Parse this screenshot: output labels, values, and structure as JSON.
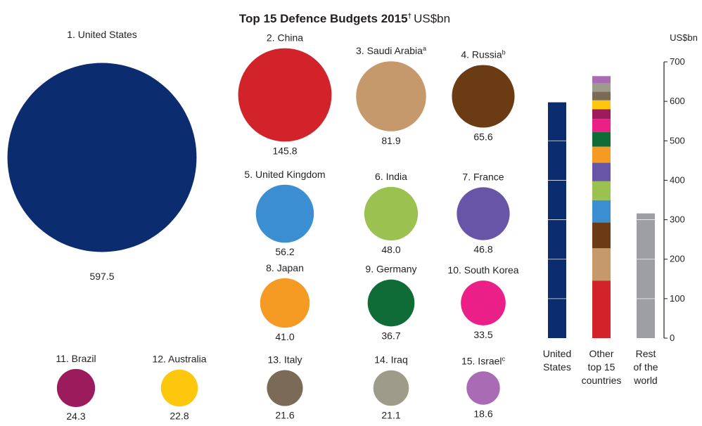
{
  "title": {
    "main": "Top 15 Defence Budgets 2015",
    "dagger": "†",
    "unit": "US$bn"
  },
  "chart_data": [
    {
      "type": "bubble",
      "unit": "US$bn",
      "countries": [
        {
          "rank": 1,
          "name": "United States",
          "note": "",
          "value": 597.5,
          "color": "#0b2d6f"
        },
        {
          "rank": 2,
          "name": "China",
          "note": "",
          "value": 145.8,
          "color": "#d2232a"
        },
        {
          "rank": 3,
          "name": "Saudi Arabia",
          "note": "a",
          "value": 81.9,
          "color": "#c5996b"
        },
        {
          "rank": 4,
          "name": "Russia",
          "note": "b",
          "value": 65.6,
          "color": "#6b3b14"
        },
        {
          "rank": 5,
          "name": "United Kingdom",
          "note": "",
          "value": 56.2,
          "color": "#3b8ed1"
        },
        {
          "rank": 6,
          "name": "India",
          "note": "",
          "value": 48.0,
          "color": "#9bc150"
        },
        {
          "rank": 7,
          "name": "France",
          "note": "",
          "value": 46.8,
          "color": "#6756a8"
        },
        {
          "rank": 8,
          "name": "Japan",
          "note": "",
          "value": 41.0,
          "color": "#f59a23"
        },
        {
          "rank": 9,
          "name": "Germany",
          "note": "",
          "value": 36.7,
          "color": "#0f6c37"
        },
        {
          "rank": 10,
          "name": "South Korea",
          "note": "",
          "value": 33.5,
          "color": "#ea2088"
        },
        {
          "rank": 11,
          "name": "Brazil",
          "note": "",
          "value": 24.3,
          "color": "#9c1b5c"
        },
        {
          "rank": 12,
          "name": "Australia",
          "note": "",
          "value": 22.8,
          "color": "#fdc70e"
        },
        {
          "rank": 13,
          "name": "Italy",
          "note": "",
          "value": 21.6,
          "color": "#7b6a55"
        },
        {
          "rank": 14,
          "name": "Iraq",
          "note": "",
          "value": 21.1,
          "color": "#9d9b8a"
        },
        {
          "rank": 15,
          "name": "Israel",
          "note": "c",
          "value": 18.6,
          "color": "#a86bb4"
        }
      ]
    },
    {
      "type": "stacked-bar",
      "ylabel": "US$bn",
      "ylim": [
        0,
        700
      ],
      "yticks": [
        0,
        100,
        200,
        300,
        400,
        500,
        600,
        700
      ],
      "grid": false,
      "bars": [
        {
          "label": [
            "United",
            "States"
          ],
          "value": 597.5,
          "color": "#0b2d6f",
          "stack": "none"
        },
        {
          "label": [
            "Other",
            "top 15",
            "countries"
          ],
          "stack": "countries",
          "order": "rank 2 at bottom to rank 15 at top"
        },
        {
          "label": [
            "Rest",
            "of the",
            "world"
          ],
          "value": 316,
          "color": "#9d9fa2",
          "stack": "none"
        }
      ]
    }
  ]
}
